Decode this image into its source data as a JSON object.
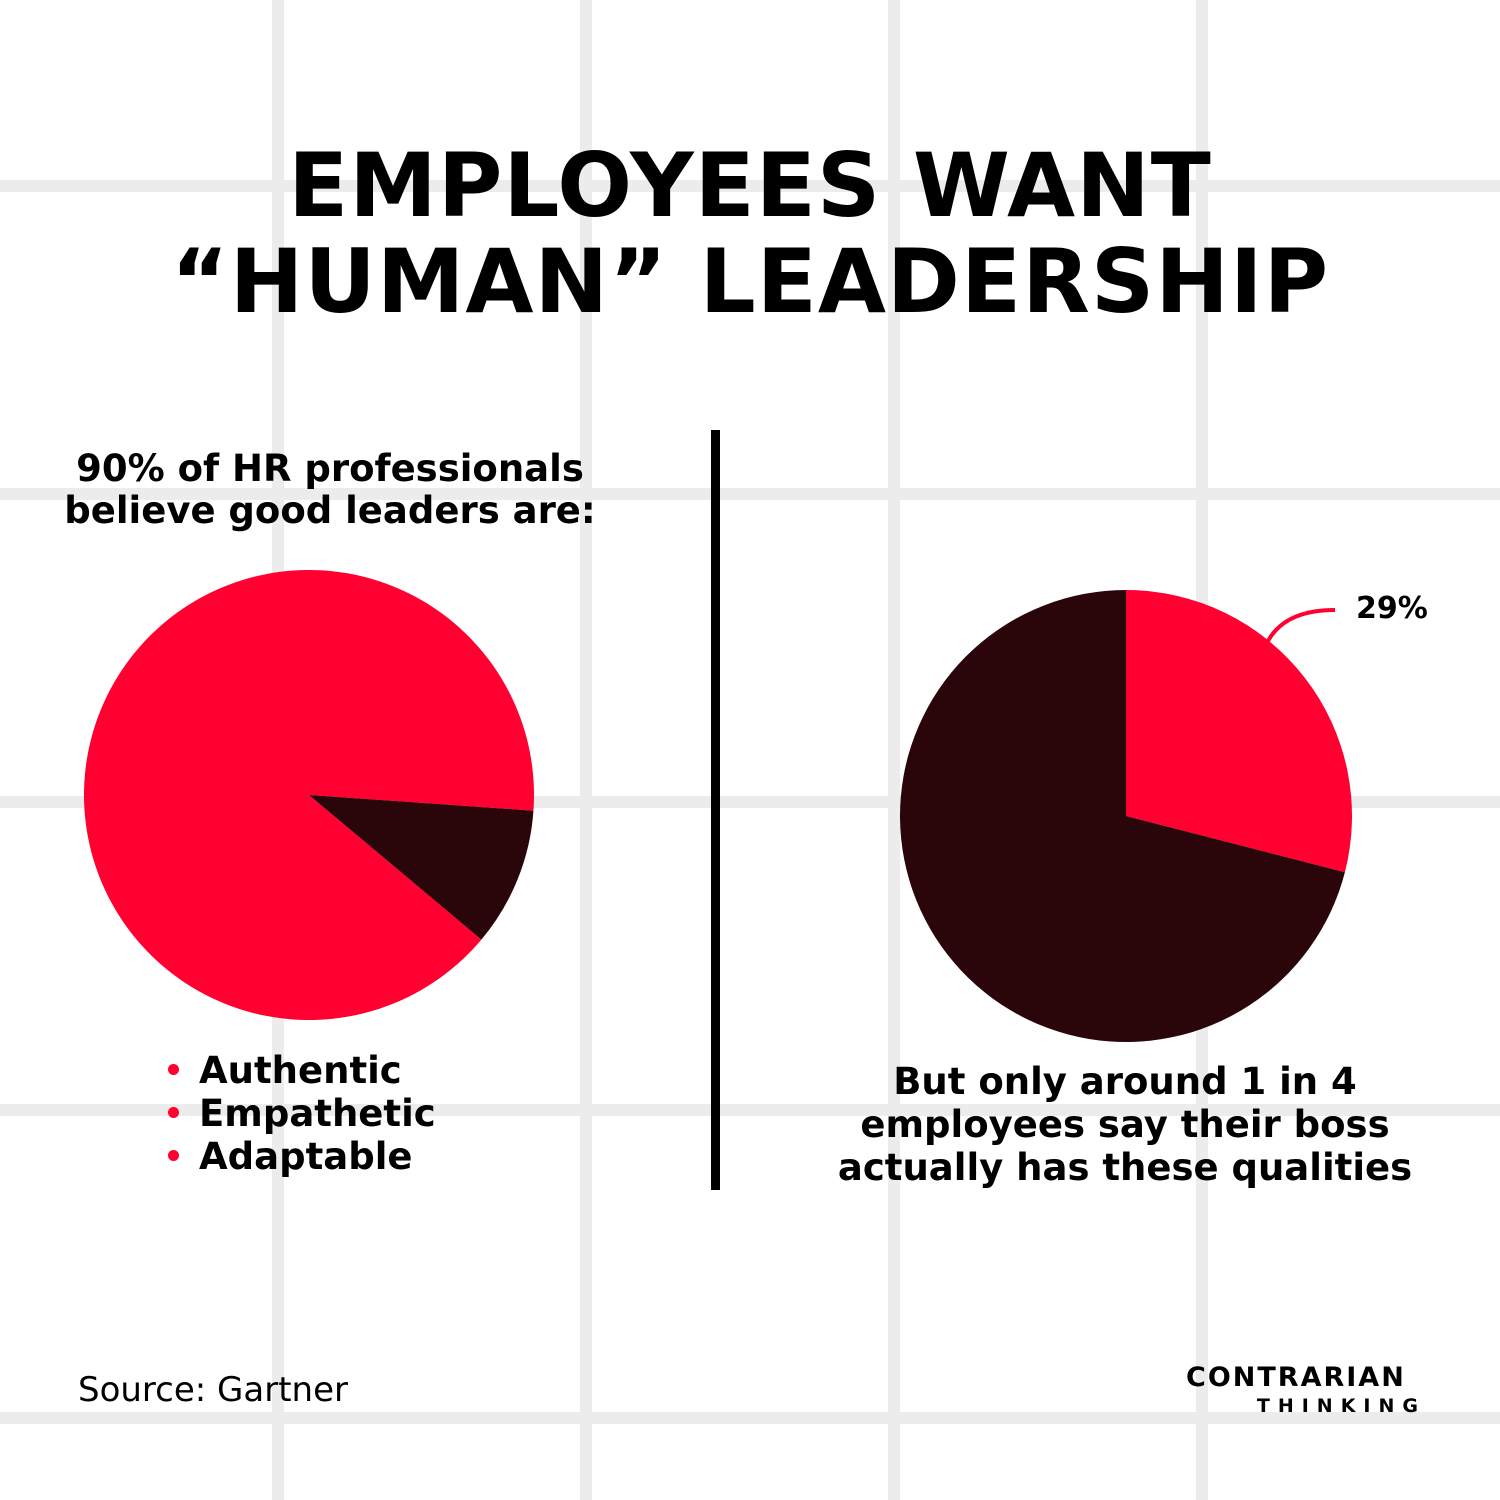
{
  "title": {
    "line1": "EMPLOYEES WANT",
    "line2": "“HUMAN” LEADERSHIP"
  },
  "left_panel": {
    "heading_line1": "90% of HR professionals",
    "heading_line2": "believe good leaders are:",
    "traits": [
      "Authentic",
      "Empathetic",
      "Adaptable"
    ]
  },
  "right_panel": {
    "percent_label": "29%",
    "caption_line1": "But only around 1 in 4",
    "caption_line2": "employees say their boss",
    "caption_line3": "actually has these qualities"
  },
  "source": "Source: Gartner",
  "logo": {
    "line1": "CONTRARIAN",
    "line2": "THINKING"
  },
  "colors": {
    "accent": "#ff0030",
    "dark": "#2a0509"
  },
  "chart_data": [
    {
      "type": "pie",
      "title": "90% of HR professionals believe good leaders are:",
      "values": [
        90,
        10
      ],
      "labels": [
        "",
        ""
      ],
      "colors": [
        "#ff0030",
        "#2a0509"
      ],
      "start_angle_deg": 130
    },
    {
      "type": "pie",
      "title": "But only around 1 in 4 employees say their boss actually has these qualities",
      "values": [
        29,
        71
      ],
      "labels": [
        "29%",
        ""
      ],
      "colors": [
        "#ff0030",
        "#2a0509"
      ],
      "start_angle_deg": 0
    }
  ]
}
